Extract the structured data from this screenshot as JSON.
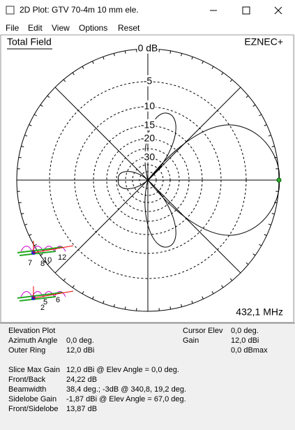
{
  "window": {
    "title": "2D Plot: GTV 70-4m 10 mm ele."
  },
  "menu": [
    "File",
    "Edit",
    "View",
    "Options",
    "Reset"
  ],
  "plot": {
    "field": "Total Field",
    "brand": "EZNEC+",
    "ring_labels": [
      "0 dB",
      "-5",
      "-10",
      "-15",
      "-20",
      "-30"
    ],
    "frequency": "432,1 MHz",
    "antenna_labels": [
      "7",
      "8",
      "10",
      "12",
      "2",
      "5",
      "6"
    ]
  },
  "info": {
    "plot_type": "Elevation Plot",
    "left": [
      [
        "Azimuth Angle",
        "0,0 deg."
      ],
      [
        "Outer Ring",
        "12,0 dBi"
      ]
    ],
    "right": [
      [
        "Cursor Elev",
        "0,0 deg."
      ],
      [
        "Gain",
        "12,0 dBi"
      ]
    ],
    "gain_max": "0,0 dBmax",
    "stats": [
      [
        "Slice Max Gain",
        "12,0 dBi @ Elev Angle = 0,0 deg."
      ],
      [
        "Front/Back",
        "24,22 dB"
      ],
      [
        "Beamwidth",
        "38,4 deg.; -3dB @ 340,8, 19,2 deg."
      ],
      [
        "Sidelobe Gain",
        "-1,87 dBi @ Elev Angle = 67,0 deg."
      ],
      [
        "Front/Sidelobe",
        "13,87 dB"
      ]
    ]
  }
}
